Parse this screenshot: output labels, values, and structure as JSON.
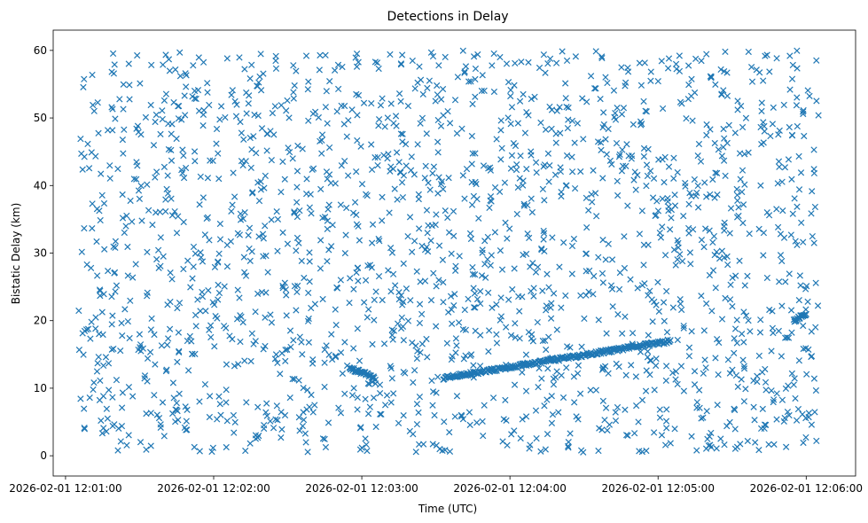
{
  "chart_data": {
    "type": "scatter",
    "title": "Detections in Delay",
    "xlabel": "Time (UTC)",
    "ylabel": "Bistatic Delay (km)",
    "marker": "x",
    "color": "#1f77b4",
    "grid": false,
    "x_range": [
      "2026-02-01 12:00:55",
      "2026-02-01 12:06:20"
    ],
    "ylim": [
      -3,
      63
    ],
    "x_ticks": [
      "2026-02-01 12:01:00",
      "2026-02-01 12:02:00",
      "2026-02-01 12:03:00",
      "2026-02-01 12:04:00",
      "2026-02-01 12:05:00",
      "2026-02-01 12:06:00"
    ],
    "y_ticks": [
      "0",
      "10",
      "20",
      "30",
      "40",
      "50",
      "60"
    ],
    "data_extent": {
      "x": [
        "2026-02-01 12:01:05",
        "2026-02-01 12:06:05"
      ],
      "y": [
        0.5,
        60
      ]
    },
    "noise_points": 1900,
    "tracks": [
      {
        "start": [
          "2026-02-01 12:02:55",
          13.0
        ],
        "end": [
          "2026-02-01 12:03:05",
          11.6
        ],
        "count": 40
      },
      {
        "start": [
          "2026-02-01 12:03:33",
          11.5
        ],
        "end": [
          "2026-02-01 12:05:05",
          17.0
        ],
        "count": 260
      },
      {
        "start": [
          "2026-02-01 12:05:55",
          20.0
        ],
        "end": [
          "2026-02-01 12:06:00",
          21.0
        ],
        "count": 20
      }
    ]
  }
}
